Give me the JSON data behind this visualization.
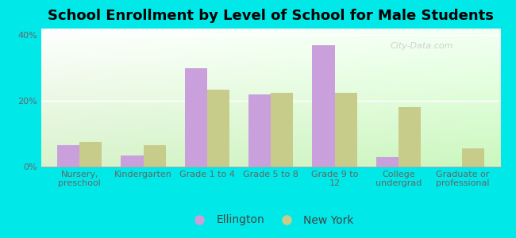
{
  "title": "School Enrollment by Level of School for Male Students",
  "categories": [
    "Nursery,\npreschool",
    "Kindergarten",
    "Grade 1 to 4",
    "Grade 5 to 8",
    "Grade 9 to\n12",
    "College\nundergrad",
    "Graduate or\nprofessional"
  ],
  "ellington": [
    6.5,
    3.5,
    30.0,
    22.0,
    37.0,
    3.0,
    0.0
  ],
  "new_york": [
    7.5,
    6.5,
    23.5,
    22.5,
    22.5,
    18.0,
    5.5
  ],
  "ellington_color": "#c9a0dc",
  "new_york_color": "#c8cc8a",
  "background_color": "#00e8e8",
  "ylim": [
    0,
    42
  ],
  "yticks": [
    0,
    20,
    40
  ],
  "ytick_labels": [
    "0%",
    "20%",
    "40%"
  ],
  "bar_width": 0.35,
  "title_fontsize": 13,
  "tick_fontsize": 8,
  "legend_fontsize": 10,
  "watermark_text": "City-Data.com",
  "legend_label_1": "Ellington",
  "legend_label_2": "New York"
}
